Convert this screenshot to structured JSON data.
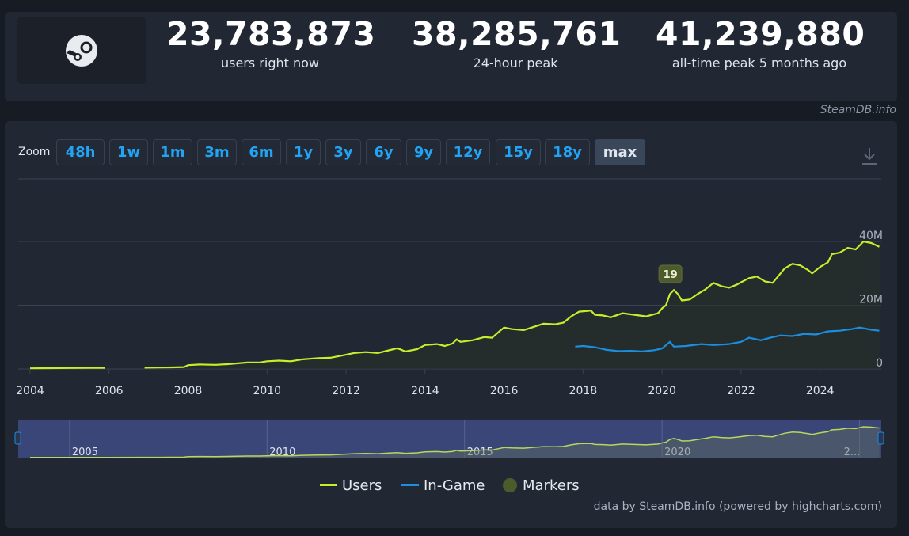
{
  "stats": [
    {
      "value": "23,783,873",
      "label": "users right now"
    },
    {
      "value": "38,285,761",
      "label": "24-hour peak"
    },
    {
      "value": "41,239,880",
      "label": "all-time peak 5 months ago"
    }
  ],
  "credit_top": "SteamDB.info",
  "zoom": {
    "label": "Zoom",
    "buttons": [
      "48h",
      "1w",
      "1m",
      "3m",
      "6m",
      "1y",
      "3y",
      "6y",
      "9y",
      "12y",
      "15y",
      "18y",
      "max"
    ],
    "active": "max"
  },
  "legend": {
    "users": "Users",
    "ingame": "In-Game",
    "markers": "Markers"
  },
  "credit_bottom": "data by SteamDB.info (powered by highcharts.com)",
  "colors": {
    "users": "#c8ee2a",
    "ingame": "#1b8ee0",
    "marker": "#4d5a2b",
    "navigator_bg": "#3f4c85",
    "accent": "#22a4f5"
  },
  "chart_data": {
    "type": "line",
    "y_ticks": [
      "0",
      "20M",
      "40M"
    ],
    "y_range": [
      0,
      40000000
    ],
    "x_ticks": [
      "2004",
      "2006",
      "2008",
      "2010",
      "2012",
      "2014",
      "2016",
      "2018",
      "2020",
      "2022",
      "2024"
    ],
    "x_range": [
      2003.7,
      2025.55
    ],
    "navigator_ticks": [
      "2005",
      "2010",
      "2015",
      "2020",
      "2..."
    ],
    "marker": {
      "label": "19",
      "x": 2020.2
    },
    "series": [
      {
        "name": "Users",
        "color": "#c8ee2a",
        "segments": [
          [
            [
              2004.0,
              0.2
            ],
            [
              2004.5,
              0.25
            ],
            [
              2005.0,
              0.3
            ],
            [
              2005.5,
              0.35
            ],
            [
              2005.9,
              0.35
            ]
          ],
          [
            [
              2006.9,
              0.4
            ],
            [
              2007.3,
              0.45
            ],
            [
              2007.6,
              0.5
            ],
            [
              2007.9,
              0.6
            ],
            [
              2008.0,
              1.2
            ],
            [
              2008.3,
              1.4
            ],
            [
              2008.7,
              1.3
            ],
            [
              2009.0,
              1.5
            ],
            [
              2009.5,
              2.0
            ],
            [
              2009.8,
              2.0
            ],
            [
              2010.0,
              2.4
            ],
            [
              2010.3,
              2.6
            ],
            [
              2010.6,
              2.4
            ],
            [
              2010.9,
              3.0
            ],
            [
              2011.3,
              3.4
            ],
            [
              2011.6,
              3.5
            ],
            [
              2011.9,
              4.2
            ],
            [
              2012.2,
              5.0
            ],
            [
              2012.5,
              5.3
            ],
            [
              2012.8,
              5.0
            ],
            [
              2013.0,
              5.6
            ],
            [
              2013.3,
              6.5
            ],
            [
              2013.5,
              5.5
            ],
            [
              2013.8,
              6.2
            ],
            [
              2014.0,
              7.5
            ],
            [
              2014.3,
              7.8
            ],
            [
              2014.5,
              7.2
            ],
            [
              2014.7,
              8.0
            ],
            [
              2014.8,
              9.3
            ],
            [
              2014.9,
              8.5
            ],
            [
              2015.2,
              9.0
            ],
            [
              2015.5,
              10.0
            ],
            [
              2015.7,
              9.8
            ],
            [
              2015.9,
              12.0
            ],
            [
              2016.0,
              13.0
            ],
            [
              2016.2,
              12.5
            ],
            [
              2016.5,
              12.2
            ],
            [
              2016.7,
              13.0
            ],
            [
              2017.0,
              14.2
            ],
            [
              2017.3,
              14.0
            ],
            [
              2017.5,
              14.5
            ],
            [
              2017.7,
              16.5
            ],
            [
              2017.9,
              18.0
            ],
            [
              2018.2,
              18.3
            ],
            [
              2018.3,
              17.0
            ],
            [
              2018.5,
              16.8
            ],
            [
              2018.7,
              16.2
            ],
            [
              2019.0,
              17.5
            ],
            [
              2019.3,
              17.0
            ],
            [
              2019.6,
              16.5
            ],
            [
              2019.9,
              17.5
            ],
            [
              2020.0,
              19.0
            ],
            [
              2020.1,
              20.0
            ],
            [
              2020.2,
              23.5
            ],
            [
              2020.3,
              24.8
            ],
            [
              2020.4,
              23.5
            ],
            [
              2020.5,
              21.5
            ],
            [
              2020.7,
              21.8
            ],
            [
              2020.9,
              23.5
            ],
            [
              2021.1,
              25.0
            ],
            [
              2021.3,
              27.0
            ],
            [
              2021.5,
              26.0
            ],
            [
              2021.7,
              25.5
            ],
            [
              2021.9,
              26.5
            ],
            [
              2022.0,
              27.2
            ],
            [
              2022.2,
              28.5
            ],
            [
              2022.4,
              29.0
            ],
            [
              2022.6,
              27.5
            ],
            [
              2022.8,
              27.0
            ],
            [
              2022.9,
              28.5
            ],
            [
              2023.1,
              31.5
            ],
            [
              2023.3,
              33.0
            ],
            [
              2023.5,
              32.5
            ],
            [
              2023.7,
              31.0
            ],
            [
              2023.8,
              30.0
            ],
            [
              2024.0,
              32.0
            ],
            [
              2024.2,
              33.5
            ],
            [
              2024.3,
              36.0
            ],
            [
              2024.5,
              36.5
            ],
            [
              2024.7,
              38.0
            ],
            [
              2024.9,
              37.5
            ],
            [
              2025.1,
              40.0
            ],
            [
              2025.3,
              39.5
            ],
            [
              2025.5,
              38.3
            ]
          ]
        ]
      },
      {
        "name": "In-Game",
        "color": "#1b8ee0",
        "segments": [
          [
            [
              2017.8,
              7.0
            ],
            [
              2018.0,
              7.2
            ],
            [
              2018.3,
              6.8
            ],
            [
              2018.6,
              6.0
            ],
            [
              2018.9,
              5.6
            ],
            [
              2019.2,
              5.7
            ],
            [
              2019.5,
              5.5
            ],
            [
              2019.8,
              5.9
            ],
            [
              2020.0,
              6.4
            ],
            [
              2020.2,
              8.5
            ],
            [
              2020.3,
              7.0
            ],
            [
              2020.6,
              7.2
            ],
            [
              2021.0,
              7.8
            ],
            [
              2021.3,
              7.5
            ],
            [
              2021.7,
              7.8
            ],
            [
              2022.0,
              8.5
            ],
            [
              2022.2,
              9.8
            ],
            [
              2022.5,
              9.0
            ],
            [
              2022.8,
              10.0
            ],
            [
              2023.0,
              10.5
            ],
            [
              2023.3,
              10.3
            ],
            [
              2023.6,
              11.0
            ],
            [
              2023.9,
              10.8
            ],
            [
              2024.2,
              11.8
            ],
            [
              2024.5,
              12.0
            ],
            [
              2024.8,
              12.5
            ],
            [
              2025.0,
              13.0
            ],
            [
              2025.3,
              12.3
            ],
            [
              2025.5,
              12.0
            ]
          ]
        ]
      }
    ]
  }
}
